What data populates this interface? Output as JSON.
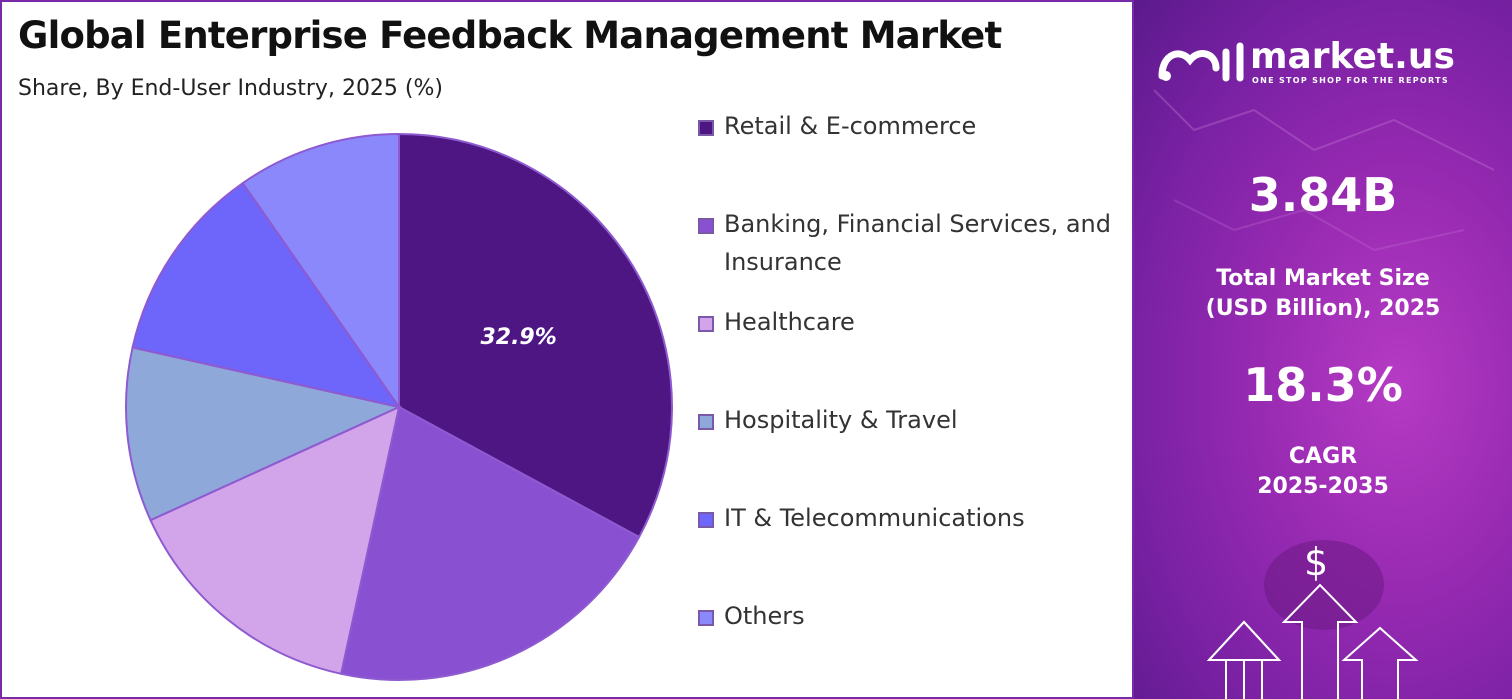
{
  "title": "Global Enterprise Feedback Management Market",
  "subtitle": "Share, By End-User Industry, 2025 (%)",
  "chart_data": {
    "type": "pie",
    "labels": [
      "Retail & E-commerce",
      "Banking, Financial Services, and Insurance",
      "Healthcare",
      "Hospitality & Travel",
      "IT & Telecommunications",
      "Others"
    ],
    "values": [
      32.9,
      20.5,
      14.8,
      10.3,
      11.8,
      9.7
    ],
    "colors": [
      "#4e1683",
      "#8a50d2",
      "#d2a4ea",
      "#8ea8da",
      "#6e66fa",
      "#8a88fb"
    ],
    "data_labels": [
      "32.9%",
      "",
      "",
      "",
      "",
      ""
    ],
    "legend_labels": [
      "Retail & E-commerce",
      "Banking, Financial Services, and",
      "Insurance",
      "Healthcare",
      "Hospitality & Travel",
      "IT & Telecommunications",
      "Others"
    ]
  },
  "side_panel": {
    "brand": "market.us",
    "tagline": "ONE STOP SHOP FOR THE REPORTS",
    "market_size": "3.84B",
    "market_size_label_1": "Total Market Size",
    "market_size_label_2": "(USD Billion), 2025",
    "cagr": "18.3%",
    "cagr_label_1": "CAGR",
    "cagr_label_2": "2025-2035",
    "currency_symbol": "$"
  }
}
